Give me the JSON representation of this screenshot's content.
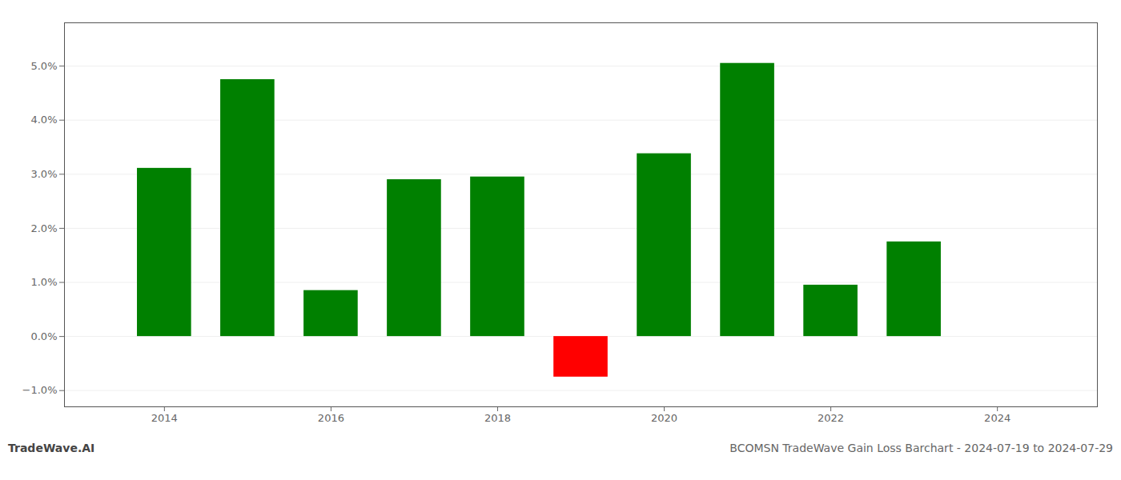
{
  "chart_data": {
    "type": "bar",
    "title": "BCOMSN TradeWave Gain Loss Barchart - 2024-07-19 to 2024-07-29",
    "annotations": [
      "TradeWave.AI"
    ],
    "x": [
      2014,
      2015,
      2016,
      2017,
      2018,
      2019,
      2020,
      2021,
      2022,
      2023
    ],
    "values": [
      0.0311,
      0.0475,
      0.0085,
      0.029,
      0.0295,
      -0.0075,
      0.0338,
      0.0505,
      0.0095,
      0.0175
    ],
    "colors": [
      "#008000",
      "#008000",
      "#008000",
      "#008000",
      "#008000",
      "#ff0000",
      "#008000",
      "#008000",
      "#008000",
      "#008000"
    ],
    "xlim": [
      2012.8,
      2025.2
    ],
    "xticks": [
      2014,
      2016,
      2018,
      2020,
      2022,
      2024
    ],
    "ylim": [
      -0.013,
      0.058
    ],
    "yticks": [
      {
        "value": -0.01,
        "label": "−1.0%"
      },
      {
        "value": 0.0,
        "label": "0.0%"
      },
      {
        "value": 0.01,
        "label": "1.0%"
      },
      {
        "value": 0.02,
        "label": "2.0%"
      },
      {
        "value": 0.03,
        "label": "3.0%"
      },
      {
        "value": 0.04,
        "label": "4.0%"
      },
      {
        "value": 0.05,
        "label": "5.0%"
      }
    ],
    "grid": true
  }
}
